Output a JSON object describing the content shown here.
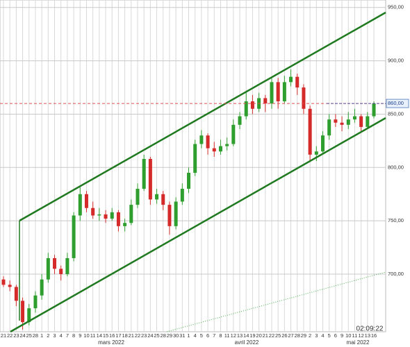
{
  "chart_data": {
    "type": "candlestick",
    "categories": [
      "21",
      "22",
      "23",
      "24",
      "25",
      "28",
      "1",
      "2",
      "3",
      "4",
      "7",
      "8",
      "9",
      "10",
      "11",
      "14",
      "15",
      "16",
      "17",
      "18",
      "21",
      "22",
      "23",
      "24",
      "25",
      "28",
      "29",
      "30",
      "31",
      "1",
      "4",
      "5",
      "6",
      "7",
      "8",
      "11",
      "12",
      "13",
      "14",
      "19",
      "20",
      "21",
      "22",
      "25",
      "26",
      "27",
      "28",
      "29",
      "2",
      "3",
      "4",
      "5",
      "6",
      "9",
      "10",
      "11",
      "12",
      "13",
      "16"
    ],
    "month_labels": [
      "mars 2022",
      "avril 2022",
      "mai 2022"
    ],
    "open": [
      695,
      690,
      688,
      675,
      655,
      668,
      680,
      695,
      715,
      705,
      700,
      715,
      755,
      775,
      762,
      755,
      756,
      752,
      758,
      745,
      748,
      765,
      780,
      808,
      770,
      775,
      765,
      745,
      768,
      780,
      795,
      822,
      830,
      818,
      815,
      820,
      822,
      840,
      848,
      862,
      855,
      865,
      860,
      880,
      862,
      880,
      885,
      875,
      855,
      812,
      815,
      830,
      845,
      842,
      840,
      845,
      848,
      838,
      848
    ],
    "high": [
      698,
      694,
      690,
      678,
      672,
      684,
      700,
      720,
      718,
      708,
      720,
      758,
      782,
      778,
      768,
      762,
      760,
      762,
      760,
      752,
      770,
      785,
      812,
      810,
      780,
      778,
      768,
      772,
      785,
      800,
      826,
      835,
      832,
      824,
      826,
      828,
      845,
      852,
      872,
      868,
      870,
      868,
      885,
      884,
      886,
      892,
      888,
      878,
      858,
      820,
      834,
      850,
      850,
      848,
      852,
      855,
      850,
      852,
      862
    ],
    "low": [
      688,
      684,
      670,
      648,
      652,
      664,
      676,
      692,
      700,
      694,
      698,
      712,
      750,
      758,
      752,
      750,
      748,
      750,
      740,
      740,
      746,
      762,
      778,
      765,
      766,
      760,
      737,
      742,
      765,
      776,
      792,
      818,
      812,
      810,
      812,
      816,
      820,
      836,
      845,
      850,
      852,
      852,
      855,
      855,
      860,
      876,
      868,
      850,
      805,
      806,
      812,
      826,
      838,
      834,
      836,
      842,
      834,
      836,
      846
    ],
    "close": [
      690,
      688,
      675,
      655,
      668,
      680,
      695,
      715,
      705,
      700,
      715,
      755,
      775,
      762,
      755,
      756,
      752,
      758,
      745,
      748,
      765,
      780,
      808,
      770,
      775,
      765,
      745,
      768,
      780,
      795,
      822,
      830,
      818,
      815,
      820,
      822,
      840,
      848,
      862,
      855,
      865,
      860,
      880,
      862,
      880,
      885,
      875,
      855,
      812,
      815,
      830,
      845,
      842,
      840,
      845,
      848,
      838,
      848,
      860
    ],
    "up_color": "#2e9e2e",
    "down_color": "#d42a2a",
    "ylim": [
      646,
      957
    ],
    "yticks": [
      {
        "value": 700,
        "label": "700,00"
      },
      {
        "value": 750,
        "label": "750,00"
      },
      {
        "value": 800,
        "label": "800,00"
      },
      {
        "value": 850,
        "label": "850,00"
      },
      {
        "value": 900,
        "label": "900,00"
      },
      {
        "value": 950,
        "label": "950,00"
      }
    ],
    "last_price": {
      "value": 860,
      "label": "860,00"
    },
    "timestamp": "02:09:22",
    "grid": true
  }
}
